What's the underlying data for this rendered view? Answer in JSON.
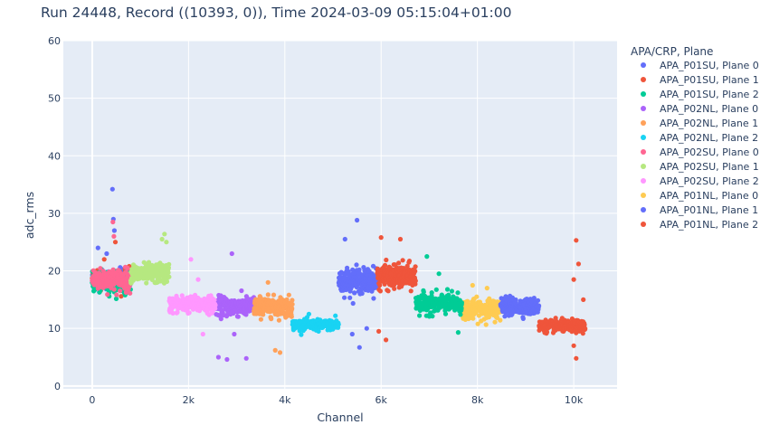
{
  "chart_data": {
    "type": "scatter",
    "title": "Run 24448, Record ((10393, 0)), Time 2024-03-09 05:15:04+01:00",
    "xlabel": "Channel",
    "ylabel": "adc_rms",
    "xlim": [
      -600,
      10900
    ],
    "ylim": [
      -0.5,
      60
    ],
    "x_ticks": [
      0,
      2000,
      4000,
      6000,
      8000,
      10000
    ],
    "x_tick_labels": [
      "0",
      "2k",
      "4k",
      "6k",
      "8k",
      "10k"
    ],
    "y_ticks": [
      0,
      10,
      20,
      30,
      40,
      50,
      60
    ],
    "y_tick_labels": [
      "0",
      "10",
      "20",
      "30",
      "40",
      "50",
      "60"
    ],
    "grid": true,
    "background": "#e5ecf6",
    "legend": {
      "title": "APA/CRP, Plane",
      "placement": "right"
    },
    "series": [
      {
        "name": "APA_P01SU, Plane 0",
        "color": "#636efa",
        "x_range": [
          0,
          799
        ],
        "center": 18.5,
        "spread": 1.2,
        "outliers": [
          [
            120,
            24
          ],
          [
            300,
            23
          ],
          [
            420,
            34.2
          ],
          [
            440,
            29
          ],
          [
            460,
            27
          ]
        ]
      },
      {
        "name": "APA_P01SU, Plane 1",
        "color": "#EF553B",
        "x_range": [
          0,
          799
        ],
        "center": 18.5,
        "spread": 1.2,
        "outliers": [
          [
            250,
            22
          ],
          [
            480,
            25
          ]
        ]
      },
      {
        "name": "APA_P01SU, Plane 2",
        "color": "#00cc96",
        "x_range": [
          0,
          799
        ],
        "center": 18.0,
        "spread": 1.2,
        "outliers": []
      },
      {
        "name": "APA_P02NL, Plane 0",
        "color": "#ab63fa",
        "x_range": [
          2560,
          3359
        ],
        "center": 13.8,
        "spread": 1.2,
        "outliers": [
          [
            2900,
            23
          ],
          [
            2950,
            9
          ],
          [
            2620,
            5
          ],
          [
            2800,
            4.6
          ],
          [
            3200,
            4.8
          ]
        ]
      },
      {
        "name": "APA_P02NL, Plane 1",
        "color": "#FFA15A",
        "x_range": [
          3360,
          4159
        ],
        "center": 13.8,
        "spread": 1.2,
        "outliers": [
          [
            3650,
            18
          ],
          [
            3800,
            6.2
          ],
          [
            3900,
            5.8
          ]
        ]
      },
      {
        "name": "APA_P02NL, Plane 2",
        "color": "#19d3f3",
        "x_range": [
          4160,
          5119
        ],
        "center": 10.6,
        "spread": 0.6,
        "outliers": [
          [
            4500,
            12.5
          ],
          [
            4700,
            9.5
          ],
          [
            5050,
            12.2
          ]
        ]
      },
      {
        "name": "APA_P02SU, Plane 0",
        "color": "#FF6692",
        "x_range": [
          0,
          799
        ],
        "center": 18.5,
        "spread": 1.3,
        "outliers": [
          [
            430,
            28.5
          ],
          [
            450,
            26
          ]
        ]
      },
      {
        "name": "APA_P02SU, Plane 1",
        "color": "#B6E880",
        "x_range": [
          800,
          1599
        ],
        "center": 19.5,
        "spread": 1.2,
        "outliers": [
          [
            1500,
            26.4
          ],
          [
            1450,
            25.5
          ],
          [
            1540,
            25
          ]
        ]
      },
      {
        "name": "APA_P02SU, Plane 2",
        "color": "#FF97FF",
        "x_range": [
          1600,
          2559
        ],
        "center": 14.2,
        "spread": 1.0,
        "outliers": [
          [
            2050,
            22
          ],
          [
            2200,
            18.5
          ],
          [
            2300,
            9
          ]
        ]
      },
      {
        "name": "APA_P01NL, Plane 0",
        "color": "#FECB52",
        "x_range": [
          7680,
          8479
        ],
        "center": 13.3,
        "spread": 1.2,
        "outliers": [
          [
            7900,
            17.5
          ],
          [
            8200,
            17
          ]
        ]
      },
      {
        "name": "APA_P01NL, Plane 1",
        "color": "#636efa",
        "x_range": [
          5120,
          5919
        ],
        "center": 18.3,
        "spread": 1.5,
        "outliers": [
          [
            5250,
            25.5
          ],
          [
            5500,
            28.8
          ],
          [
            5400,
            9
          ],
          [
            5550,
            6.7
          ],
          [
            5700,
            10
          ]
        ]
      },
      {
        "name": "APA_P01NL, Plane 2",
        "color": "#EF553B",
        "x_range": [
          5920,
          6719
        ],
        "center": 19.0,
        "spread": 1.5,
        "outliers": [
          [
            6000,
            25.8
          ],
          [
            5950,
            9.5
          ],
          [
            6100,
            8
          ],
          [
            6400,
            25.5
          ]
        ]
      }
    ],
    "extra_blocks": [
      {
        "color": "#00cc96",
        "x_range": [
          6720,
          7679
        ],
        "center": 14.3,
        "spread": 1.2,
        "outliers": [
          [
            6950,
            22.5
          ],
          [
            7200,
            19.5
          ],
          [
            7600,
            9.3
          ]
        ]
      },
      {
        "color": "#636efa",
        "x_range": [
          8480,
          9279
        ],
        "center": 13.8,
        "spread": 1.0,
        "outliers": []
      },
      {
        "color": "#EF553B",
        "x_range": [
          9280,
          10239
        ],
        "center": 10.4,
        "spread": 0.7,
        "outliers": [
          [
            10050,
            25.3
          ],
          [
            10000,
            18.5
          ],
          [
            10100,
            21.2
          ],
          [
            10050,
            4.8
          ],
          [
            10000,
            7
          ],
          [
            10200,
            15
          ]
        ]
      }
    ]
  }
}
